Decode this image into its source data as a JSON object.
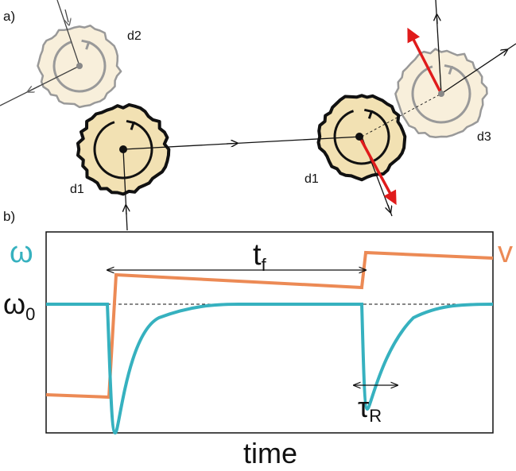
{
  "panel_a": {
    "label": "a)",
    "disks": [
      {
        "label": "d2"
      },
      {
        "label": "d1"
      },
      {
        "label": "d1"
      },
      {
        "label": "d3"
      }
    ]
  },
  "panel_b": {
    "label": "b)",
    "left_axis": "ω",
    "right_axis": "v",
    "reference": {
      "symbol": "ω",
      "subscript": "0"
    },
    "interval_f": {
      "symbol": "t",
      "subscript": "f"
    },
    "interval_r": {
      "symbol": "τ",
      "subscript": "R"
    },
    "x_label": "time"
  }
}
